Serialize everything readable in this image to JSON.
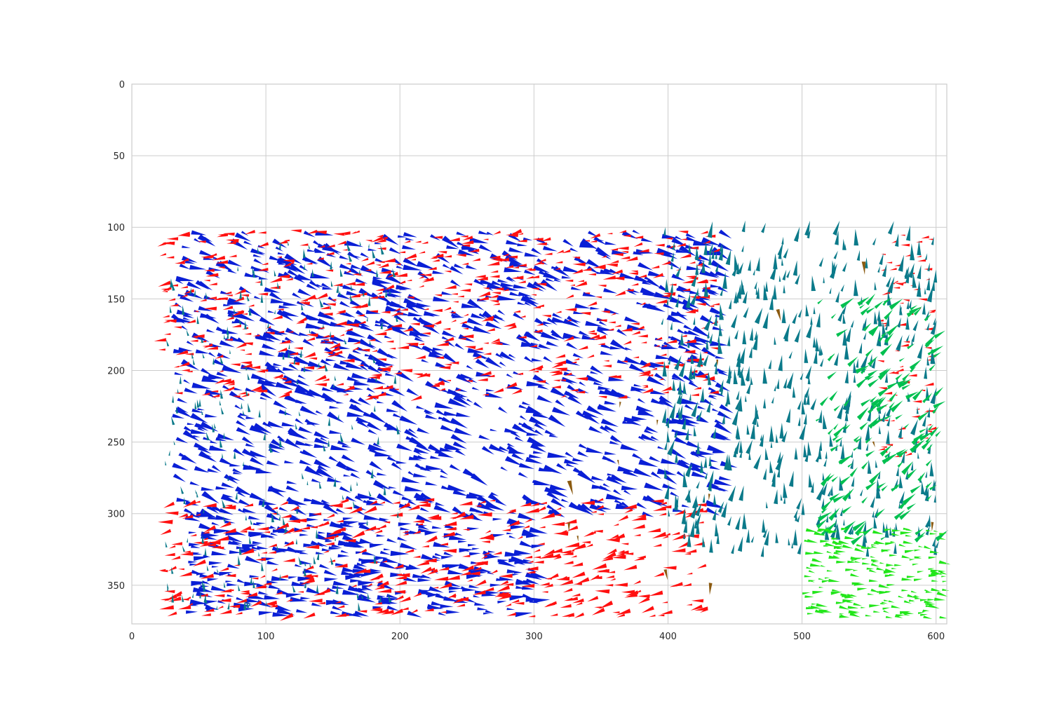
{
  "chart_data": {
    "type": "quiver",
    "title": "",
    "xlabel": "",
    "ylabel": "",
    "xlim": [
      0,
      608
    ],
    "ylim": [
      377,
      0
    ],
    "y_inverted": true,
    "grid": true,
    "legend": "none",
    "x_ticks": [
      0,
      100,
      200,
      300,
      400,
      500,
      600
    ],
    "y_ticks": [
      0,
      50,
      100,
      150,
      200,
      250,
      300,
      350
    ],
    "series": [
      {
        "color": "#0a1fd6",
        "regions": [
          {
            "x": [
              30,
              440
            ],
            "y": [
              102,
              300
            ],
            "dx": 5,
            "dy": 2.2,
            "n": 1200
          },
          {
            "x": [
              40,
              300
            ],
            "y": [
              300,
              370
            ],
            "dx": 5,
            "dy": 1.0,
            "n": 380
          }
        ]
      },
      {
        "color": "#ff1010",
        "regions": [
          {
            "x": [
              25,
              440
            ],
            "y": [
              103,
              220
            ],
            "dx": -3.5,
            "dy": 0.2,
            "n": 620
          },
          {
            "x": [
              25,
              430
            ],
            "y": [
              290,
              372
            ],
            "dx": -4.0,
            "dy": 0.5,
            "n": 440
          },
          {
            "x": [
              560,
              605
            ],
            "y": [
              105,
              260
            ],
            "dx": -2.5,
            "dy": 0,
            "n": 80
          }
        ]
      },
      {
        "color": "#0b7a8a",
        "regions": [
          {
            "x": [
              395,
              600
            ],
            "y": [
              103,
              330
            ],
            "dx": 1.0,
            "dy": -4.5,
            "n": 520
          },
          {
            "x": [
              25,
              200
            ],
            "y": [
              110,
              370
            ],
            "dx": 0,
            "dy": -2.5,
            "n": 220
          }
        ]
      },
      {
        "color": "#00c050",
        "regions": [
          {
            "x": [
              510,
              600
            ],
            "y": [
              150,
              320
            ],
            "dx": 3.5,
            "dy": -2.5,
            "n": 180
          }
        ]
      },
      {
        "color": "#22e61a",
        "regions": [
          {
            "x": [
              500,
              605
            ],
            "y": [
              310,
              372
            ],
            "dx": 3.0,
            "dy": 0.5,
            "n": 220
          }
        ]
      },
      {
        "color": "#8b5a10",
        "regions": [
          {
            "x": [
              320,
              600
            ],
            "y": [
              120,
              377
            ],
            "dx": 0,
            "dy": 4,
            "n": 14
          }
        ]
      }
    ]
  }
}
